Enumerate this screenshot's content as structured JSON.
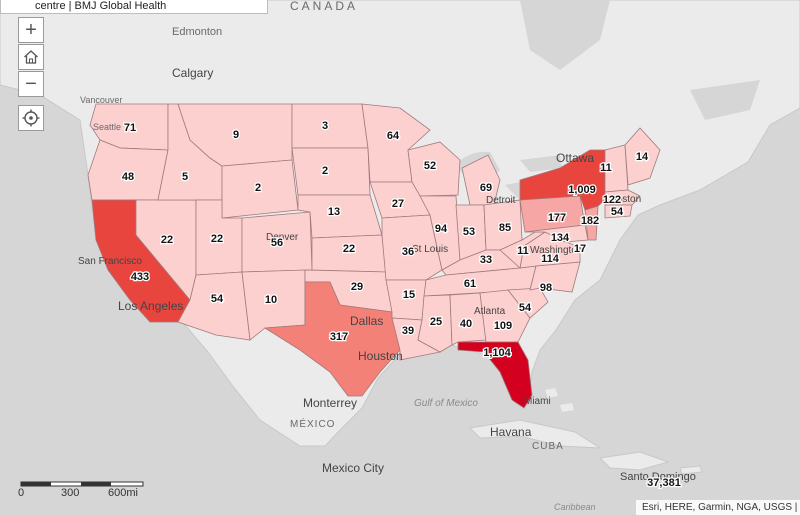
{
  "header": {
    "title_text": "centre | BMJ Global Health"
  },
  "controls": {
    "zoom_in_label": "+",
    "zoom_out_label": "−",
    "home_icon": "home-icon",
    "locate_icon": "locate-icon"
  },
  "scale": {
    "labels": [
      "0",
      "300",
      "600mi"
    ]
  },
  "attribution": "Esri, HERE, Garmin, NGA, USGS | CC",
  "colors": {
    "water": "#d6d6d6",
    "land": "#ebebeb",
    "state_low": "#fdd0d0",
    "state_mid_low": "#f6a7a5",
    "state_mid": "#f48177",
    "state_high": "#e8453f",
    "state_max": "#d4001f",
    "border": "#a07a7a"
  },
  "place_labels": [
    "CANADA",
    "Edmonton",
    "Calgary",
    "Vancouver",
    "Seattle",
    "Ottawa",
    "Detroit",
    "Denver",
    "St Louis",
    "Washington",
    "Boston",
    "San Francisco",
    "Los Angeles",
    "Dallas",
    "Houston",
    "Atlanta",
    "Miami",
    "Monterrey",
    "MÉXICO",
    "Gulf of Mexico",
    "Havana",
    "CUBA",
    "Mexico City",
    "Santo Domingo",
    "Caribbean"
  ],
  "state_counts": [
    {
      "state": "WA",
      "count": "71"
    },
    {
      "state": "OR",
      "count": "48"
    },
    {
      "state": "ID",
      "count": "5"
    },
    {
      "state": "MT",
      "count": "9"
    },
    {
      "state": "ND",
      "count": "3"
    },
    {
      "state": "SD",
      "count": "2"
    },
    {
      "state": "WY",
      "count": "2"
    },
    {
      "state": "NE",
      "count": "13"
    },
    {
      "state": "MN",
      "count": "64"
    },
    {
      "state": "WI",
      "count": "52"
    },
    {
      "state": "IA",
      "count": "27"
    },
    {
      "state": "MI",
      "count": "69"
    },
    {
      "state": "NV",
      "count": "22"
    },
    {
      "state": "UT",
      "count": "22"
    },
    {
      "state": "CO",
      "count": "56"
    },
    {
      "state": "KS",
      "count": "22"
    },
    {
      "state": "MO",
      "count": "36"
    },
    {
      "state": "IL",
      "count": "94"
    },
    {
      "state": "IN",
      "count": "53"
    },
    {
      "state": "OH",
      "count": "85"
    },
    {
      "state": "PA",
      "count": "177"
    },
    {
      "state": "NY",
      "count": "1,009"
    },
    {
      "state": "VT",
      "count": "11"
    },
    {
      "state": "ME",
      "count": "14"
    },
    {
      "state": "MA",
      "count": "122"
    },
    {
      "state": "CT",
      "count": "54"
    },
    {
      "state": "NJ",
      "count": "182"
    },
    {
      "state": "MD",
      "count": "134"
    },
    {
      "state": "DE",
      "count": "17"
    },
    {
      "state": "VA",
      "count": "114"
    },
    {
      "state": "WV",
      "count": "11"
    },
    {
      "state": "KY",
      "count": "33"
    },
    {
      "state": "CA",
      "count": "433"
    },
    {
      "state": "AZ",
      "count": "54"
    },
    {
      "state": "NM",
      "count": "10"
    },
    {
      "state": "OK",
      "count": "29"
    },
    {
      "state": "TX",
      "count": "317"
    },
    {
      "state": "AR",
      "count": "15"
    },
    {
      "state": "LA",
      "count": "39"
    },
    {
      "state": "MS",
      "count": "25"
    },
    {
      "state": "AL",
      "count": "40"
    },
    {
      "state": "GA",
      "count": "109"
    },
    {
      "state": "TN",
      "count": "61"
    },
    {
      "state": "NC",
      "count": "98"
    },
    {
      "state": "SC",
      "count": "54"
    },
    {
      "state": "FL",
      "count": "1,104"
    },
    {
      "state": "PR",
      "count": "37,381"
    }
  ]
}
